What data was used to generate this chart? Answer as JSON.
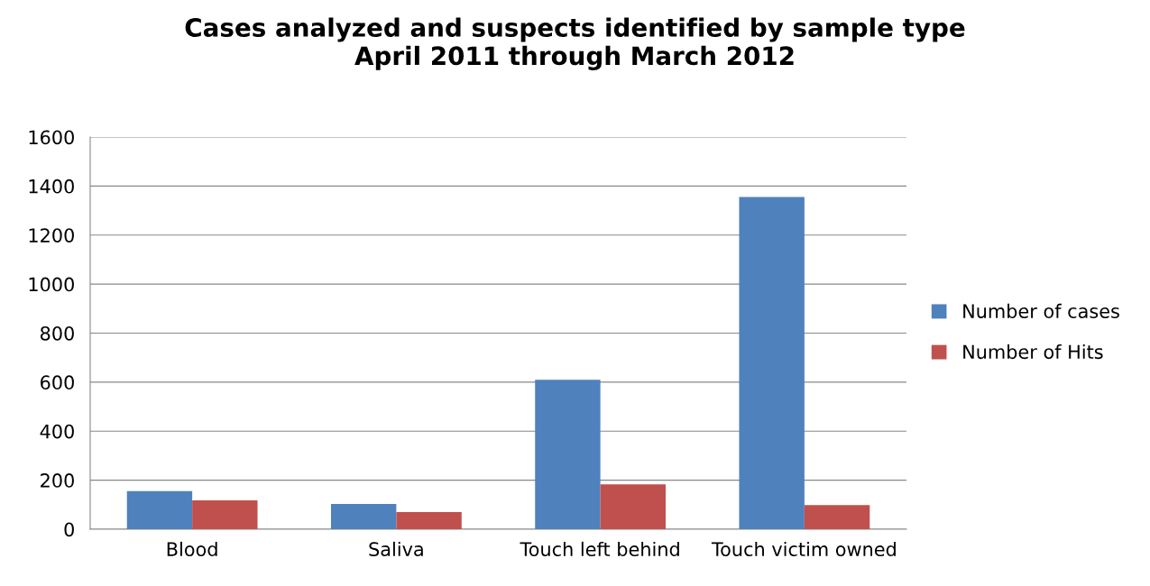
{
  "chart_data": {
    "type": "bar",
    "title": "Cases analyzed and suspects identified by sample type\nApril 2011 through March 2012",
    "categories": [
      "Blood",
      "Saliva",
      "Touch left behind",
      "Touch victim owned"
    ],
    "series": [
      {
        "name": "Number of cases",
        "color": "#4f81bd",
        "values": [
          155,
          103,
          610,
          1355
        ]
      },
      {
        "name": "Number of Hits",
        "color": "#c0504d",
        "values": [
          118,
          70,
          183,
          98
        ]
      }
    ],
    "ylim": [
      0,
      1600
    ],
    "yticks": [
      0,
      200,
      400,
      600,
      800,
      1000,
      1200,
      1400,
      1600
    ],
    "grid": "y",
    "legend": "right"
  }
}
